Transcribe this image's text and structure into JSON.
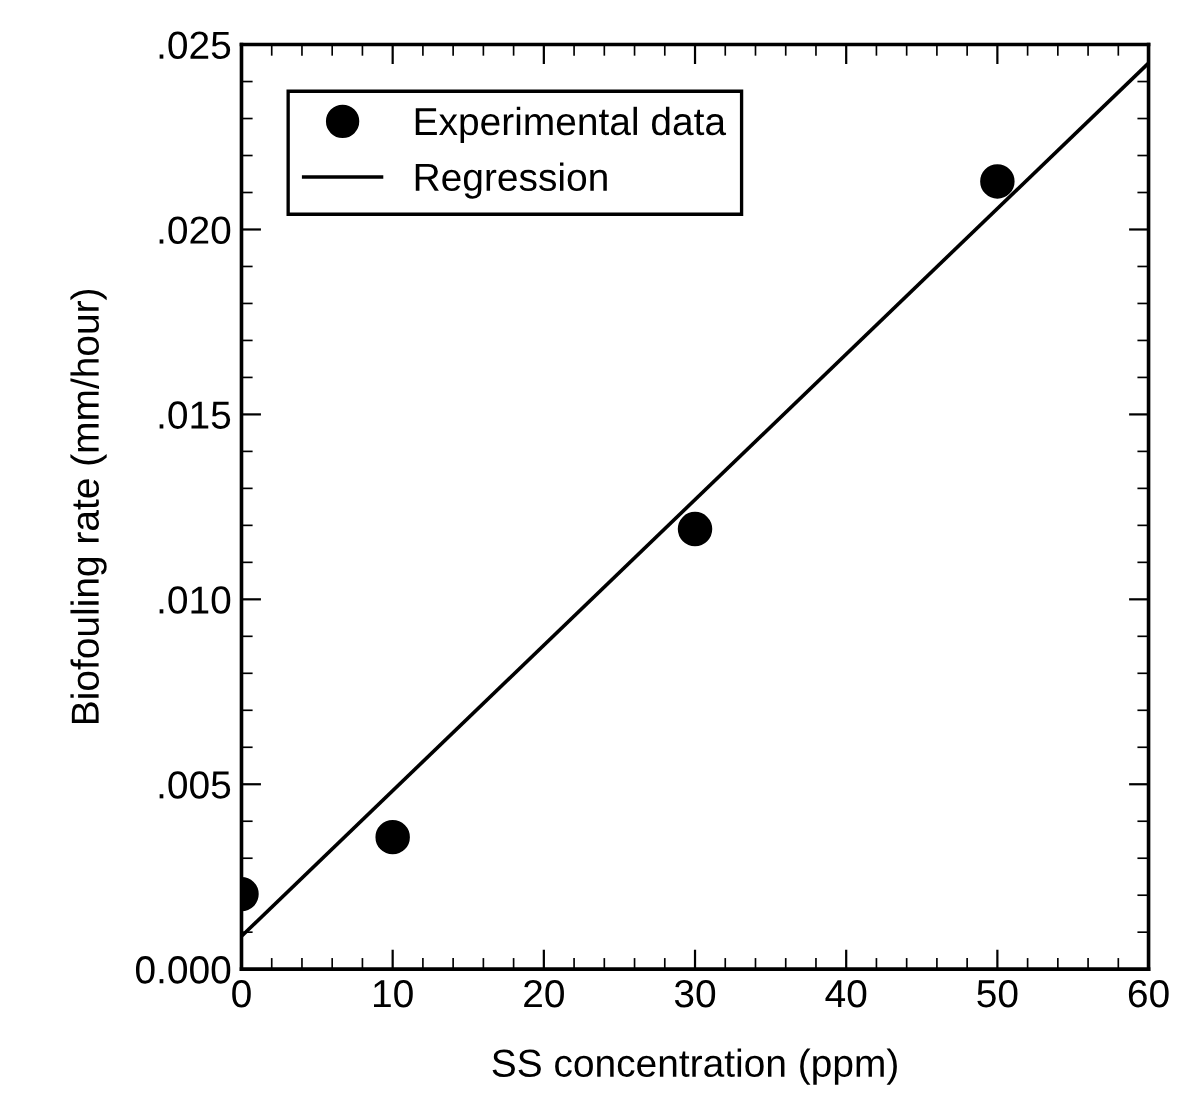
{
  "chart_data": {
    "type": "scatter",
    "xlabel": "SS concentration (ppm)",
    "ylabel": "Biofouling rate (mm/hour)",
    "x": [
      0,
      10,
      30,
      50
    ],
    "series": [
      {
        "name": "Experimental data",
        "color": "#000000",
        "marker": "circle",
        "values": [
          0.00203,
          0.00357,
          0.0119,
          0.0213
        ]
      },
      {
        "name": "Regression",
        "type": "line",
        "color": "#000000",
        "marker": "none",
        "line_style": "solid",
        "x": [
          0,
          60
        ],
        "values": [
          0.00089,
          0.0245
        ]
      }
    ],
    "xlim": [
      0,
      60
    ],
    "xticks": [
      0,
      10,
      20,
      30,
      40,
      50,
      60
    ],
    "ylim": [
      0,
      0.025
    ],
    "yticks": [
      {
        "value": 0,
        "label": "0.000"
      },
      {
        "value": 0.005,
        "label": ".005"
      },
      {
        "value": 0.01,
        "label": ".010"
      },
      {
        "value": 0.015,
        "label": ".015"
      },
      {
        "value": 0.02,
        "label": ".020"
      },
      {
        "value": 0.025,
        "label": ".025"
      }
    ],
    "grid": false,
    "legend": "top left"
  }
}
